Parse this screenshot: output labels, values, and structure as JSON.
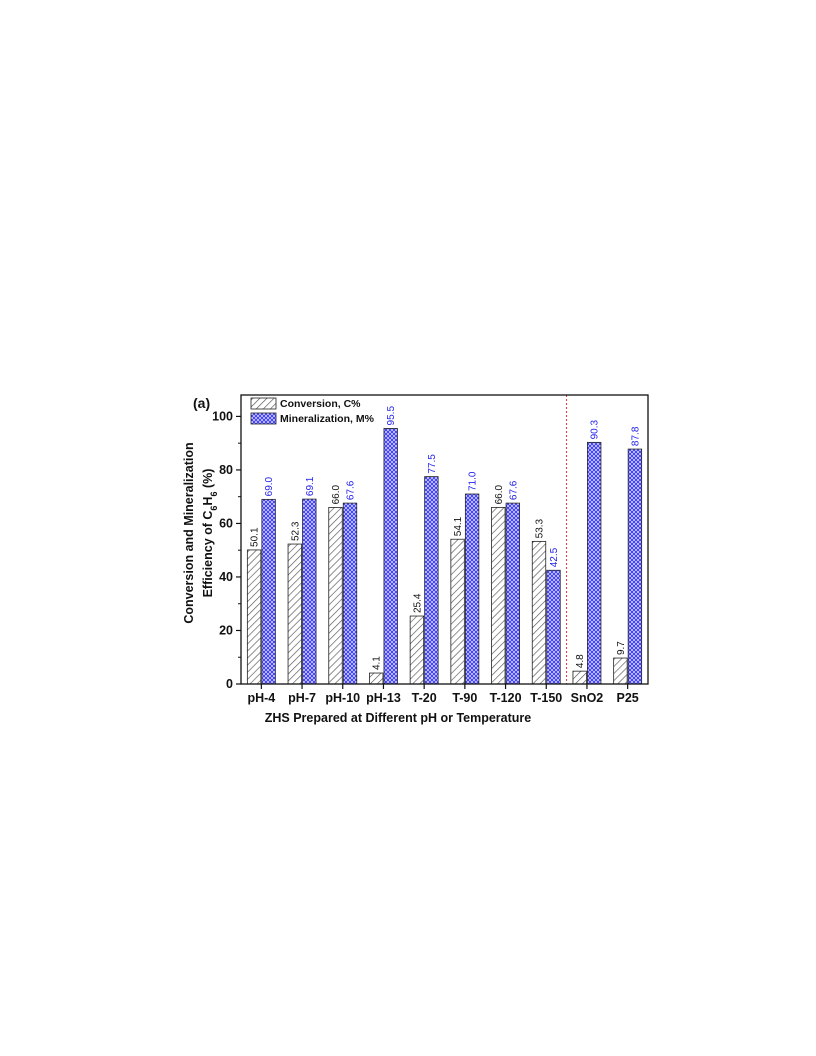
{
  "chart_data": {
    "type": "bar",
    "panel_label": "(a)",
    "title": "",
    "xlabel": "ZHS Prepared at Different pH or Temperature",
    "ylabel": {
      "line1": "Conversion and Mineralization",
      "line2_prefix": "Efficiency of C",
      "sub1": "6",
      "mid": "H",
      "sub2": "6",
      "suffix": " (%)"
    },
    "categories": [
      "pH-4",
      "pH-7",
      "pH-10",
      "pH-13",
      "T-20",
      "T-90",
      "T-120",
      "T-150",
      "SnO2",
      "P25"
    ],
    "ylim": [
      0,
      108
    ],
    "yticks": [
      0,
      20,
      40,
      60,
      80,
      100
    ],
    "series": [
      {
        "name": "Conversion, C%",
        "values": [
          50.1,
          52.3,
          66.0,
          4.1,
          25.4,
          54.1,
          66.0,
          53.3,
          4.8,
          9.7
        ],
        "labels": [
          "50.1",
          "52.3",
          "66.0",
          "4.1",
          "25.4",
          "54.1",
          "66.0",
          "53.3",
          "4.8",
          "9.7"
        ],
        "fill": "#ffffff",
        "hatch": "#555555",
        "label_color": "#111111"
      },
      {
        "name": "Mineralization, M%",
        "values": [
          69.0,
          69.1,
          67.6,
          95.5,
          77.5,
          71.0,
          67.6,
          42.5,
          90.3,
          87.8
        ],
        "labels": [
          "69.0",
          "69.1",
          "67.6",
          "95.5",
          "77.5",
          "71.0",
          "67.6",
          "42.5",
          "90.3",
          "87.8"
        ],
        "fill": "#c9c9ff",
        "hatch": "#2b2bff",
        "label_color": "#2222ee"
      }
    ],
    "divider_after_category_index": 7,
    "divider_color": "#e02020",
    "grid": false,
    "legend_position": "top-left"
  }
}
